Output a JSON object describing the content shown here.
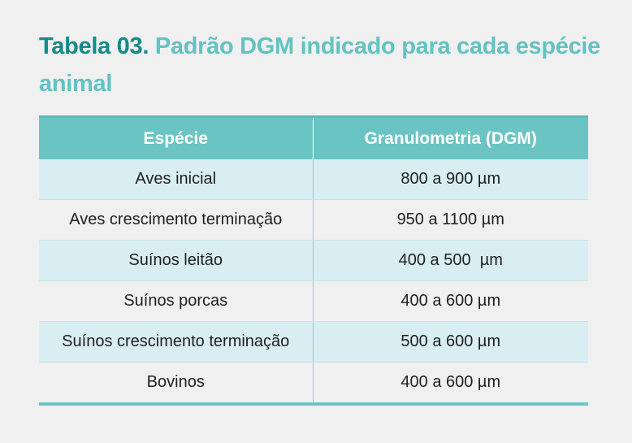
{
  "caption": {
    "label": "Tabela 03.",
    "title": "Padrão DGM indicado para cada espécie animal"
  },
  "table": {
    "headers": [
      "Espécie",
      "Granulometria (DGM)"
    ],
    "rows": [
      [
        "Aves inicial",
        "800 a 900 µm"
      ],
      [
        "Aves crescimento terminação",
        "950 a 1100 µm"
      ],
      [
        "Suínos leitão",
        "400 a 500  µm"
      ],
      [
        "Suínos porcas",
        "400 a 600 µm"
      ],
      [
        "Suínos crescimento terminação",
        "500 a 600 µm"
      ],
      [
        "Bovinos",
        "400 a 600 µm"
      ]
    ]
  },
  "colors": {
    "label": "#138a8a",
    "title": "#63c2c2",
    "header_bg": "#6bc4c4",
    "row_tint": "#d9eef2",
    "page_bg": "#f0f0f0"
  }
}
